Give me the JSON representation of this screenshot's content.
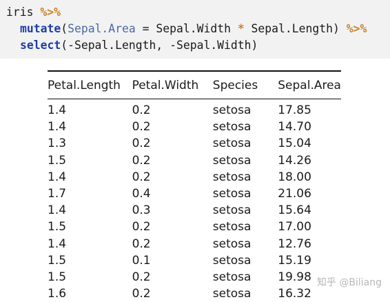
{
  "code": {
    "line1": {
      "obj": "iris",
      "pipe": "%>%"
    },
    "line2": {
      "fn": "mutate",
      "open": "(",
      "arg": "Sepal.Area",
      "rest": " = Sepal.Width ",
      "mul": "*",
      "rest2": " Sepal.Length) ",
      "pipe": "%>%"
    },
    "line3": {
      "fn": "select",
      "rest": "(-Sepal.Length, -Sepal.Width)"
    }
  },
  "table": {
    "headers": [
      "Petal.Length",
      "Petal.Width",
      "Species",
      "Sepal.Area"
    ],
    "rows": [
      [
        "1.4",
        "0.2",
        "setosa",
        "17.85"
      ],
      [
        "1.4",
        "0.2",
        "setosa",
        "14.70"
      ],
      [
        "1.3",
        "0.2",
        "setosa",
        "15.04"
      ],
      [
        "1.5",
        "0.2",
        "setosa",
        "14.26"
      ],
      [
        "1.4",
        "0.2",
        "setosa",
        "18.00"
      ],
      [
        "1.7",
        "0.4",
        "setosa",
        "21.06"
      ],
      [
        "1.4",
        "0.3",
        "setosa",
        "15.64"
      ],
      [
        "1.5",
        "0.2",
        "setosa",
        "17.00"
      ],
      [
        "1.4",
        "0.2",
        "setosa",
        "12.76"
      ],
      [
        "1.5",
        "0.1",
        "setosa",
        "15.19"
      ],
      [
        "1.5",
        "0.2",
        "setosa",
        "19.98"
      ],
      [
        "1.6",
        "0.2",
        "setosa",
        "16.32"
      ]
    ]
  },
  "watermark": "知乎 @Biliang"
}
